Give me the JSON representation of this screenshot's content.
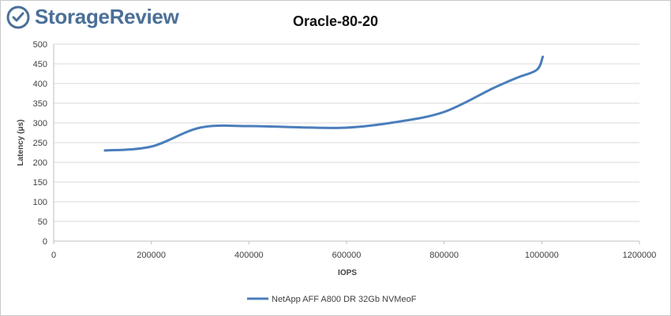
{
  "brand": {
    "name": "StorageReview",
    "icon": "storagereview-logo-icon",
    "color": "#4a6f98"
  },
  "chart_data": {
    "type": "line",
    "title": "Oracle-80-20",
    "xlabel": "IOPS",
    "ylabel": "Latency (μs)",
    "xlim": [
      0,
      1200000
    ],
    "ylim": [
      0,
      500
    ],
    "xticks": [
      0,
      200000,
      400000,
      600000,
      800000,
      1000000,
      1200000
    ],
    "yticks": [
      0,
      50,
      100,
      150,
      200,
      250,
      300,
      350,
      400,
      450,
      500
    ],
    "grid": true,
    "legend_position": "bottom",
    "series": [
      {
        "name": "NetApp AFF A800 DR 32Gb NVMeoF",
        "color": "#4a7ebb",
        "x": [
          105000,
          200000,
          300000,
          400000,
          500000,
          600000,
          700000,
          800000,
          900000,
          950000,
          990000,
          1002000
        ],
        "y": [
          230,
          240,
          288,
          292,
          289,
          288,
          302,
          328,
          388,
          415,
          435,
          468
        ]
      }
    ]
  }
}
